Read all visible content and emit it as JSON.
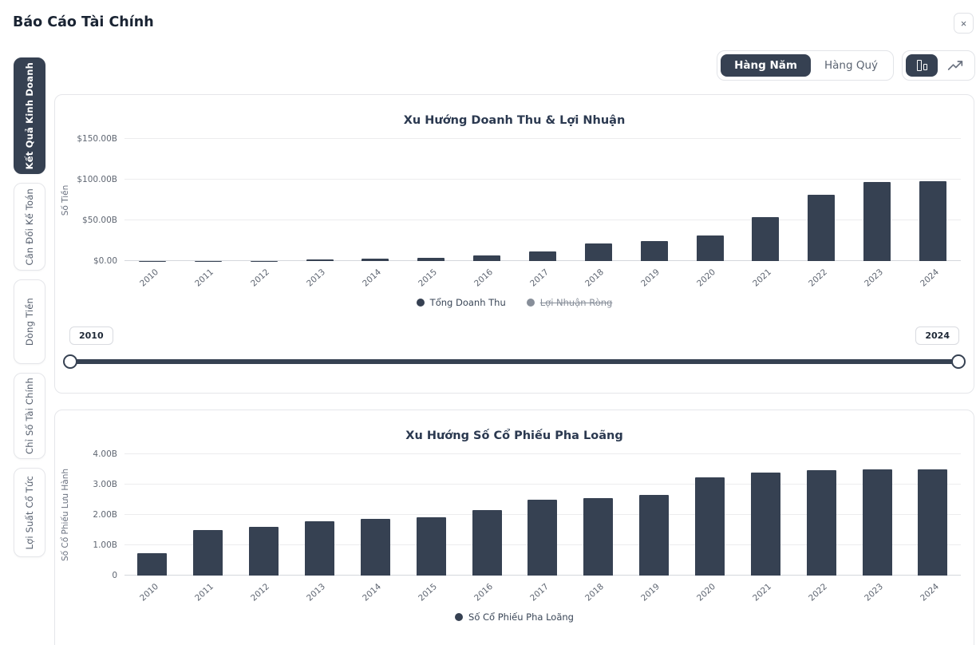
{
  "header": {
    "title": "Báo Cáo Tài Chính",
    "close_icon": "×"
  },
  "toolbar": {
    "period_toggle": [
      {
        "label": "Hàng Năm",
        "active": true
      },
      {
        "label": "Hàng Quý",
        "active": false
      }
    ],
    "chart_type_toggle": [
      {
        "name": "bar-chart-icon",
        "active": true
      },
      {
        "name": "line-chart-icon",
        "active": false
      }
    ]
  },
  "sidebar": {
    "tabs": [
      {
        "label": "Kết Quả Kinh Doanh",
        "active": true
      },
      {
        "label": "Cân Đối Kế Toán",
        "active": false
      },
      {
        "label": "Dòng Tiền",
        "active": false
      },
      {
        "label": "Chỉ Số Tài Chính",
        "active": false
      },
      {
        "label": "Lợi Suất Cổ Tức",
        "active": false
      }
    ]
  },
  "slider": {
    "min_label": "2010",
    "max_label": "2024"
  },
  "colors": {
    "accent": "#364152",
    "disabled_legend": "#878e99"
  },
  "chart_data": [
    {
      "type": "bar",
      "title": "Xu Hướng Doanh Thu & Lợi Nhuận",
      "ylabel": "Số Tiền",
      "categories": [
        "2010",
        "2011",
        "2012",
        "2013",
        "2014",
        "2015",
        "2016",
        "2017",
        "2018",
        "2019",
        "2020",
        "2021",
        "2022",
        "2023",
        "2024"
      ],
      "series": [
        {
          "name": "Tổng Doanh Thu",
          "visible": true,
          "values": [
            0.12,
            0.2,
            0.41,
            2.01,
            3.2,
            4.05,
            7.0,
            11.76,
            21.46,
            24.58,
            31.54,
            53.82,
            81.46,
            96.77,
            97.69
          ]
        }
      ],
      "legend": [
        {
          "label": "Tổng Doanh Thu",
          "visible": true
        },
        {
          "label": "Lợi Nhuận Ròng",
          "visible": false
        }
      ],
      "yticks": [
        {
          "value": 0,
          "label": "$0.00"
        },
        {
          "value": 50,
          "label": "$50.00B"
        },
        {
          "value": 100,
          "label": "$100.00B"
        },
        {
          "value": 150,
          "label": "$150.00B"
        }
      ],
      "ylim": [
        0,
        150
      ],
      "grid": true,
      "legend_position": "bottom",
      "unit": "USD billions"
    },
    {
      "type": "bar",
      "title": "Xu Hướng Số Cổ Phiếu Pha Loãng",
      "ylabel": "Số Cổ Phiếu Lưu Hành",
      "categories": [
        "2010",
        "2011",
        "2012",
        "2013",
        "2014",
        "2015",
        "2016",
        "2017",
        "2018",
        "2019",
        "2020",
        "2021",
        "2022",
        "2023",
        "2024"
      ],
      "series": [
        {
          "name": "Số Cổ Phiếu Pha Loãng",
          "visible": true,
          "values": [
            0.75,
            1.51,
            1.6,
            1.79,
            1.87,
            1.92,
            2.17,
            2.49,
            2.56,
            2.66,
            3.25,
            3.39,
            3.47,
            3.49,
            3.5
          ]
        }
      ],
      "legend": [
        {
          "label": "Số Cổ Phiếu Pha Loãng",
          "visible": true
        }
      ],
      "yticks": [
        {
          "value": 0,
          "label": "0"
        },
        {
          "value": 1,
          "label": "1.00B"
        },
        {
          "value": 2,
          "label": "2.00B"
        },
        {
          "value": 3,
          "label": "3.00B"
        },
        {
          "value": 4,
          "label": "4.00B"
        }
      ],
      "ylim": [
        0,
        4
      ],
      "grid": true,
      "legend_position": "bottom",
      "unit": "shares billions"
    }
  ]
}
